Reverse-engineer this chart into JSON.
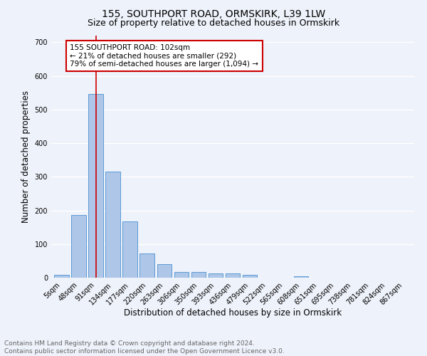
{
  "title1": "155, SOUTHPORT ROAD, ORMSKIRK, L39 1LW",
  "title2": "Size of property relative to detached houses in Ormskirk",
  "xlabel": "Distribution of detached houses by size in Ormskirk",
  "ylabel": "Number of detached properties",
  "footer_line1": "Contains HM Land Registry data © Crown copyright and database right 2024.",
  "footer_line2": "Contains public sector information licensed under the Open Government Licence v3.0.",
  "annotation_line1": "155 SOUTHPORT ROAD: 102sqm",
  "annotation_line2": "← 21% of detached houses are smaller (292)",
  "annotation_line3": "79% of semi-detached houses are larger (1,094) →",
  "bar_values": [
    8,
    187,
    547,
    315,
    168,
    73,
    40,
    18,
    18,
    12,
    12,
    8,
    0,
    0,
    5,
    0,
    0,
    0,
    0,
    0,
    0
  ],
  "bar_labels": [
    "5sqm",
    "48sqm",
    "91sqm",
    "134sqm",
    "177sqm",
    "220sqm",
    "263sqm",
    "306sqm",
    "350sqm",
    "393sqm",
    "436sqm",
    "479sqm",
    "522sqm",
    "565sqm",
    "608sqm",
    "651sqm",
    "695sqm",
    "738sqm",
    "781sqm",
    "824sqm",
    "867sqm"
  ],
  "bar_color": "#aec6e8",
  "bar_edge_color": "#5b9bd5",
  "vline_x": 2,
  "vline_color": "#cc0000",
  "ylim": [
    0,
    720
  ],
  "yticks": [
    0,
    100,
    200,
    300,
    400,
    500,
    600,
    700
  ],
  "background_color": "#eef2fa",
  "grid_color": "#ffffff",
  "annotation_box_edge": "#cc0000",
  "title_fontsize": 10,
  "subtitle_fontsize": 9,
  "axis_label_fontsize": 8.5,
  "tick_fontsize": 7,
  "footer_fontsize": 6.5,
  "annotation_fontsize": 7.5
}
